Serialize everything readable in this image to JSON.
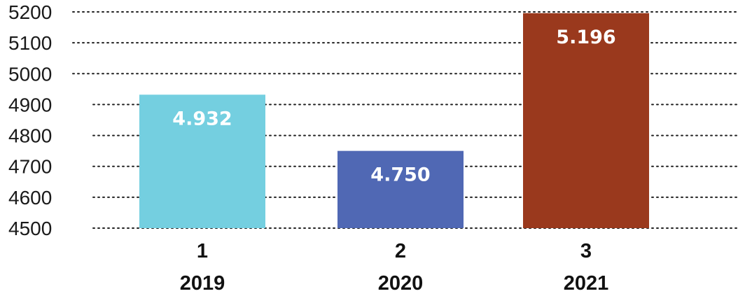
{
  "chart_data": {
    "type": "bar",
    "categories": [
      {
        "index": "1",
        "year": "2019"
      },
      {
        "index": "2",
        "year": "2020"
      },
      {
        "index": "3",
        "year": "2021"
      }
    ],
    "values": [
      4932,
      4750,
      5196
    ],
    "data_labels": [
      "4.932",
      "4.750",
      "5.196"
    ],
    "colors": [
      "#74cfe0",
      "#5068b4",
      "#9a391d"
    ],
    "yticks": [
      4500,
      4600,
      4700,
      4800,
      4900,
      5000,
      5100,
      5200
    ],
    "ylim": [
      4500,
      5200
    ],
    "grid": true,
    "title": "",
    "xlabel": "",
    "ylabel": ""
  }
}
